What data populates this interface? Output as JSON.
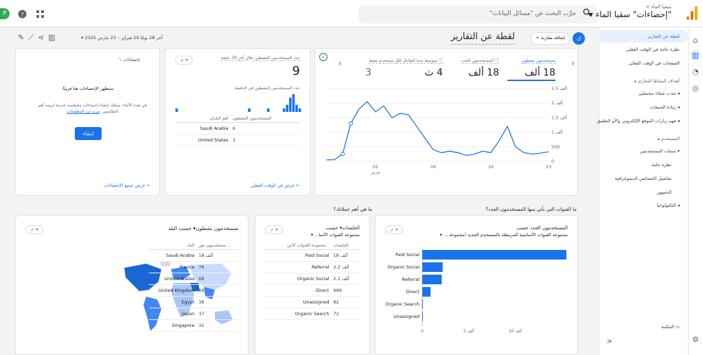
{
  "app": {
    "account_sub": "سقيا الماء > ",
    "property_name": "سقيا الماء",
    "product": "\"إحصاءات\"",
    "search_placeholder": "جرِّب البحث عن \"مسائل البيانات\"",
    "avatar_letter": "P",
    "logo_colors": [
      "#f9ab00",
      "#e37400"
    ]
  },
  "nav": {
    "active": "لقطة عن التقارير",
    "realtime_overview": "نظرة عامة في الوقت الفعلي",
    "realtime_pages": "الصفحات في الوقت الفعلي",
    "business_section": "أهداف النشاط التجاري",
    "acquire": "جذب عملاء محتملين",
    "sales": "زيادة المبيعات",
    "web_app": "فهم زيارات الموقع الإلكتروني والأو التطبيق",
    "user_section": "المستخدم",
    "user_attrs": "سمات المستخدمين",
    "overview": "نظرة عامة",
    "demographics": "تفاصيل الخصائص الديموغرافية",
    "audience": "الجمهور",
    "tech": "التكنولوجيا",
    "library": "المكتبة",
    "collapse": "<"
  },
  "header": {
    "title": "لقطة عن التقارير",
    "compare": "إضافة مقارنة +",
    "badge": "ك",
    "date_range": "آخر 28 يومًا 24 فبراير – 23 مارس 2025 ▾"
  },
  "overview_card": {
    "metrics": [
      {
        "label": "مستخدمون نشطون",
        "value": "18 ألف"
      },
      {
        "label": "المستخدمون الجدد",
        "value": "18 ألف"
      },
      {
        "label": "متوسط مدة التفاعل لكل مستخدم نشط",
        "value": "4 ث"
      },
      {
        "label": "",
        "value": "3"
      }
    ],
    "y_ticks": [
      "2.5 ألف",
      "2 ألف",
      "1.5 ألف",
      "1 ألف",
      "500",
      "0"
    ],
    "x_ticks": [
      "02",
      "09",
      "16",
      "23"
    ],
    "x_sub": "مارس"
  },
  "chart_data": {
    "type": "line",
    "title": "",
    "xlabel": "",
    "ylabel": "",
    "ylim": [
      0,
      2500
    ],
    "x": [
      "2025-02-24",
      "2025-02-25",
      "2025-02-26",
      "2025-02-27",
      "2025-02-28",
      "2025-03-01",
      "2025-03-02",
      "2025-03-03",
      "2025-03-04",
      "2025-03-05",
      "2025-03-06",
      "2025-03-07",
      "2025-03-08",
      "2025-03-09",
      "2025-03-10",
      "2025-03-11",
      "2025-03-12",
      "2025-03-13",
      "2025-03-14",
      "2025-03-15",
      "2025-03-16",
      "2025-03-17",
      "2025-03-18",
      "2025-03-19",
      "2025-03-20",
      "2025-03-21",
      "2025-03-22",
      "2025-03-23"
    ],
    "series": [
      {
        "values": [
          50,
          60,
          250,
          1300,
          1800,
          2050,
          1700,
          1900,
          1500,
          1650,
          1600,
          1200,
          800,
          400,
          300,
          350,
          300,
          200,
          250,
          350,
          300,
          700,
          1200,
          500,
          300,
          250,
          280,
          330
        ]
      }
    ],
    "grid": true
  },
  "realtime_card": {
    "label_30": "عدد المستخدمين النشطين خلال آخر 30 دقيقة",
    "value": "9",
    "label_min": "عدد المستخدمين النشطين في الدقيقة",
    "minute_bars": [
      1,
      0,
      0,
      0,
      0,
      0,
      0,
      0,
      0,
      0,
      0,
      0,
      0,
      0,
      0,
      0,
      0,
      0,
      0,
      0,
      0,
      0,
      0,
      1,
      0,
      0,
      0,
      0,
      0,
      1,
      0,
      0,
      0,
      0,
      1,
      2,
      4,
      5,
      2,
      1
    ],
    "col_country": "أهم البلدان",
    "col_users": "المستخدمون النشطون",
    "rows": [
      {
        "name": "Saudi Arabia",
        "value": "6"
      },
      {
        "name": "United States",
        "value": "3"
      }
    ],
    "link": "عرض في الوقت الفعلي"
  },
  "insights_card": {
    "title": "إحصاءات",
    "message": "ستظهر الإحصاءات هنا قريبًا.",
    "body": "في هذه الأثناء، يمكنك إنشاء إحصاءات مخصّصة جديدة لرصد أهم المقاييس.",
    "learn": "مزيد من المعلومات",
    "create": "إنشاء",
    "link": "عرض جميع الإحصاءات"
  },
  "questions": {
    "q1": "ما القنوات التي يأتي منها المستخدمون الجدد؟",
    "q2": "ما هي أهم حملاتك؟"
  },
  "new_users_card": {
    "title": "المستخدمون الجدد حسب",
    "subtitle": "مجموعة القنوات الأساسية المرتبطة بالمستخدم الجديد (مجموعة ... ▾",
    "categories": [
      "Paid Social",
      "Organic Social",
      "Referral",
      "Direct",
      "Organic Search",
      "Unassigned"
    ],
    "values": [
      15500,
      2200,
      2100,
      900,
      80,
      70
    ],
    "x_ticks": [
      "0",
      "5 آلف",
      "10 آلف"
    ]
  },
  "sessions_card": {
    "title": "الجلسات▾ حسب",
    "subtitle": "مجموعة القنوات الأسا... ▾",
    "col_group": "مجموعة القنوات الأس...",
    "col_sessions": "الجلسات",
    "rows": [
      {
        "name": "Paid Social",
        "value": "18 ألف"
      },
      {
        "name": "Referral",
        "value": "2.2 ألف"
      },
      {
        "name": "Organic Social",
        "value": "2.1 ألف"
      },
      {
        "name": "Direct",
        "value": "989"
      },
      {
        "name": "Unassigned",
        "value": "82"
      },
      {
        "name": "Organic Search",
        "value": "72"
      }
    ]
  },
  "country_card": {
    "title": "مستخدمون نشطون▾ حسب البلد",
    "col_country": "البلد",
    "col_users": "مستخدمون نش...",
    "rows": [
      {
        "name": "Saudi Arabia",
        "value": "18 ألف"
      },
      {
        "name": "France",
        "value": "76"
      },
      {
        "name": "United States",
        "value": "68"
      },
      {
        "name": "United Kingdom",
        "value": "39"
      },
      {
        "name": "Egypt",
        "value": "38"
      },
      {
        "name": "Japan",
        "value": "37"
      },
      {
        "name": "Singapore",
        "value": "32"
      }
    ]
  }
}
